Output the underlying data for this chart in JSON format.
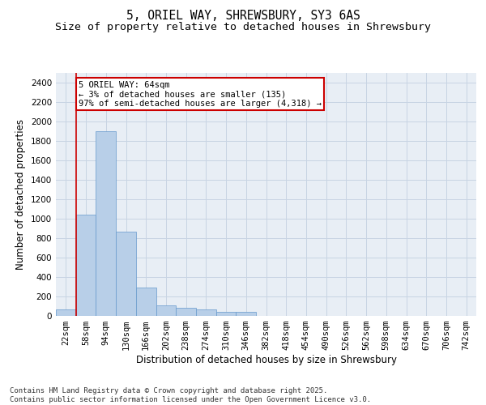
{
  "title_line1": "5, ORIEL WAY, SHREWSBURY, SY3 6AS",
  "title_line2": "Size of property relative to detached houses in Shrewsbury",
  "xlabel": "Distribution of detached houses by size in Shrewsbury",
  "ylabel": "Number of detached properties",
  "annotation_title": "5 ORIEL WAY: 64sqm",
  "annotation_line2": "← 3% of detached houses are smaller (135)",
  "annotation_line3": "97% of semi-detached houses are larger (4,318) →",
  "footer_line1": "Contains HM Land Registry data © Crown copyright and database right 2025.",
  "footer_line2": "Contains public sector information licensed under the Open Government Licence v3.0.",
  "bar_color": "#b8cfe8",
  "bar_edge_color": "#6699cc",
  "grid_color": "#c8d4e3",
  "background_color": "#e8eef5",
  "annotation_box_edge_color": "#cc0000",
  "vline_color": "#cc0000",
  "categories": [
    "22sqm",
    "58sqm",
    "94sqm",
    "130sqm",
    "166sqm",
    "202sqm",
    "238sqm",
    "274sqm",
    "310sqm",
    "346sqm",
    "382sqm",
    "418sqm",
    "454sqm",
    "490sqm",
    "526sqm",
    "562sqm",
    "598sqm",
    "634sqm",
    "670sqm",
    "706sqm",
    "742sqm"
  ],
  "values": [
    65,
    1040,
    1900,
    870,
    290,
    105,
    80,
    65,
    45,
    45,
    0,
    0,
    0,
    0,
    0,
    0,
    0,
    0,
    0,
    0,
    0
  ],
  "vline_x_index": 0.5,
  "ylim": [
    0,
    2500
  ],
  "yticks": [
    0,
    200,
    400,
    600,
    800,
    1000,
    1200,
    1400,
    1600,
    1800,
    2000,
    2200,
    2400
  ],
  "title_fontsize": 10.5,
  "subtitle_fontsize": 9.5,
  "axis_label_fontsize": 8.5,
  "tick_fontsize": 7.5,
  "annotation_fontsize": 7.5,
  "footer_fontsize": 6.5
}
